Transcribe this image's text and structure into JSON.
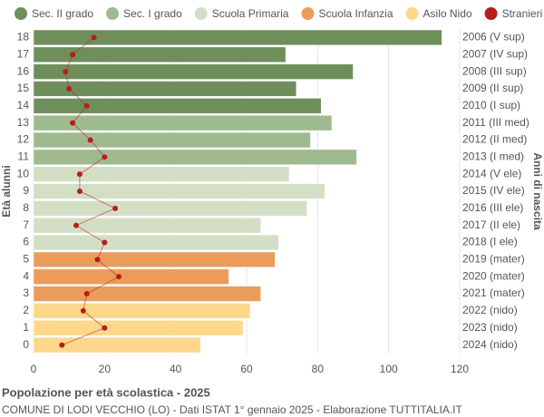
{
  "chart_data": {
    "type": "bar",
    "orientation": "horizontal",
    "title": "Popolazione per età scolastica - 2025",
    "subtitle": "COMUNE DI LODI VECCHIO (LO) - Dati ISTAT 1° gennaio 2025 - Elaborazione TUTTITALIA.IT",
    "y_label": "Età alunni",
    "y2_label": "Anni di nascita",
    "categories": [
      "18",
      "17",
      "16",
      "15",
      "14",
      "13",
      "12",
      "11",
      "10",
      "9",
      "8",
      "7",
      "6",
      "5",
      "4",
      "3",
      "2",
      "1",
      "0"
    ],
    "right_labels": [
      "2006 (V sup)",
      "2007 (IV sup)",
      "2008 (III sup)",
      "2009 (II sup)",
      "2010 (I sup)",
      "2011 (III med)",
      "2012 (II med)",
      "2013 (I med)",
      "2014 (V ele)",
      "2015 (IV ele)",
      "2016 (III ele)",
      "2017 (II ele)",
      "2018 (I ele)",
      "2019 (mater)",
      "2020 (mater)",
      "2021 (mater)",
      "2022 (nido)",
      "2023 (nido)",
      "2024 (nido)"
    ],
    "series": [
      {
        "name": "Sec. II grado",
        "color": "#6e8f5c",
        "values": [
          115,
          71,
          90,
          74,
          81,
          null,
          null,
          null,
          null,
          null,
          null,
          null,
          null,
          null,
          null,
          null,
          null,
          null,
          null
        ]
      },
      {
        "name": "Sec. I grado",
        "color": "#9fba8f",
        "values": [
          null,
          null,
          null,
          null,
          null,
          84,
          78,
          91,
          null,
          null,
          null,
          null,
          null,
          null,
          null,
          null,
          null,
          null,
          null
        ]
      },
      {
        "name": "Scuola Primaria",
        "color": "#d3dfc5",
        "values": [
          null,
          null,
          null,
          null,
          null,
          null,
          null,
          null,
          72,
          82,
          77,
          64,
          69,
          null,
          null,
          null,
          null,
          null,
          null
        ]
      },
      {
        "name": "Scuola Infanzia",
        "color": "#eb9c5a",
        "values": [
          null,
          null,
          null,
          null,
          null,
          null,
          null,
          null,
          null,
          null,
          null,
          null,
          null,
          68,
          55,
          64,
          null,
          null,
          null
        ]
      },
      {
        "name": "Asilo Nido",
        "color": "#fdd88c",
        "values": [
          null,
          null,
          null,
          null,
          null,
          null,
          null,
          null,
          null,
          null,
          null,
          null,
          null,
          null,
          null,
          null,
          61,
          59,
          47
        ]
      },
      {
        "name": "Stranieri",
        "color": "#b81c1c",
        "type": "line",
        "values": [
          17,
          11,
          9,
          10,
          15,
          11,
          16,
          20,
          13,
          13,
          23,
          12,
          20,
          18,
          24,
          15,
          14,
          20,
          8
        ]
      }
    ],
    "xlim": [
      0,
      120
    ],
    "xticks": [
      0,
      20,
      40,
      60,
      80,
      100,
      120
    ],
    "grid": true
  }
}
